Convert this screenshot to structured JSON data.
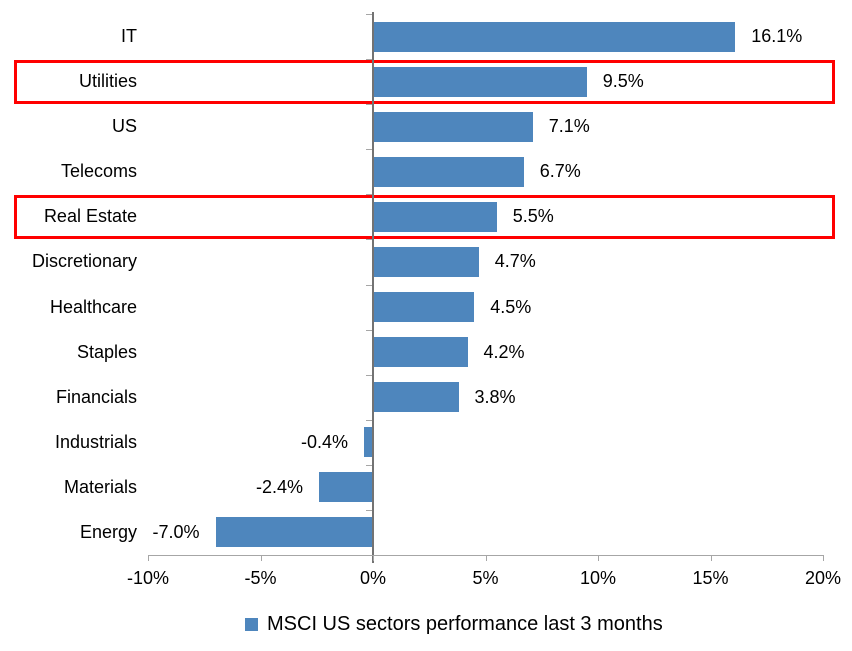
{
  "chart_data": {
    "type": "bar",
    "orientation": "horizontal",
    "categories": [
      "IT",
      "Utilities",
      "US",
      "Telecoms",
      "Real Estate",
      "Discretionary",
      "Healthcare",
      "Staples",
      "Financials",
      "Industrials",
      "Materials",
      "Energy"
    ],
    "values": [
      16.1,
      9.5,
      7.1,
      6.7,
      5.5,
      4.7,
      4.5,
      4.2,
      3.8,
      -0.4,
      -2.4,
      -7.0
    ],
    "value_labels": [
      "16.1%",
      "9.5%",
      "7.1%",
      "6.7%",
      "5.5%",
      "4.7%",
      "4.5%",
      "4.2%",
      "3.8%",
      "-0.4%",
      "-2.4%",
      "-7.0%"
    ],
    "x_ticks": [
      {
        "value": -10,
        "label": "-10%"
      },
      {
        "value": -5,
        "label": "-5%"
      },
      {
        "value": 0,
        "label": "0%"
      },
      {
        "value": 5,
        "label": "5%"
      },
      {
        "value": 10,
        "label": "10%"
      },
      {
        "value": 15,
        "label": "15%"
      },
      {
        "value": 20,
        "label": "20%"
      }
    ],
    "xlim": [
      -10,
      20
    ],
    "grid": false,
    "legend": "MSCI US sectors performance last 3 months",
    "legend_position": "bottom",
    "bar_color": "#4E86BD",
    "highlight_box_color": "#FF0000",
    "highlighted_categories": [
      "Utilities",
      "Real Estate"
    ]
  }
}
